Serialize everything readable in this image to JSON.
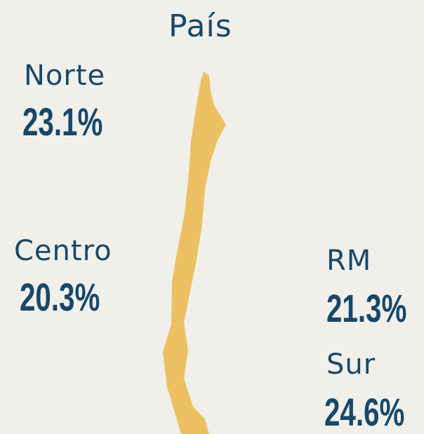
{
  "title": "País",
  "regions": [
    {
      "name": "Norte",
      "value": "23.1%"
    },
    {
      "name": "Centro",
      "value": "20.3%"
    },
    {
      "name": "RM",
      "value": "21.3%"
    },
    {
      "name": "Sur",
      "value": "24.6%"
    }
  ]
}
